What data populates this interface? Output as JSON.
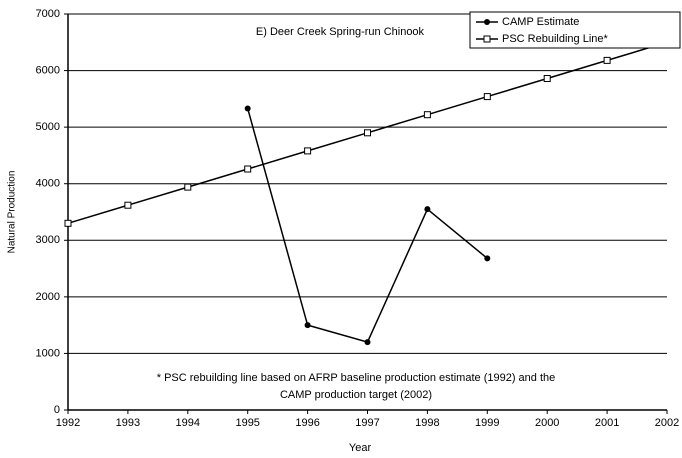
{
  "chart_data": {
    "type": "line",
    "title": "E) Deer Creek Spring-run Chinook",
    "x_label": "Year",
    "y_label": "Natural Production",
    "x": [
      1992,
      1993,
      1994,
      1995,
      1996,
      1997,
      1998,
      1999,
      2000,
      2001,
      2002
    ],
    "series": [
      {
        "name": "CAMP Estimate",
        "color": "#000000",
        "marker": "circle",
        "values": [
          null,
          null,
          null,
          5330,
          1500,
          1200,
          3550,
          2680,
          null,
          null,
          null
        ]
      },
      {
        "name": "PSC Rebuilding Line*",
        "color": "#000000",
        "marker": "square",
        "values": [
          3300,
          3620,
          3940,
          4260,
          4580,
          4900,
          5220,
          5540,
          5860,
          6180,
          6500
        ]
      }
    ],
    "xlim": [
      1992,
      2002
    ],
    "xticks": [
      1992,
      1993,
      1994,
      1995,
      1996,
      1997,
      1998,
      1999,
      2000,
      2001,
      2002
    ],
    "ylim": [
      0,
      7000
    ],
    "yticks": [
      0,
      1000,
      2000,
      3000,
      4000,
      5000,
      6000,
      7000
    ],
    "grid": true,
    "legend": "top-right",
    "note": [
      "* PSC rebuilding line based on AFRP baseline production estimate (1992) and the",
      "CAMP production target (2002)"
    ]
  }
}
